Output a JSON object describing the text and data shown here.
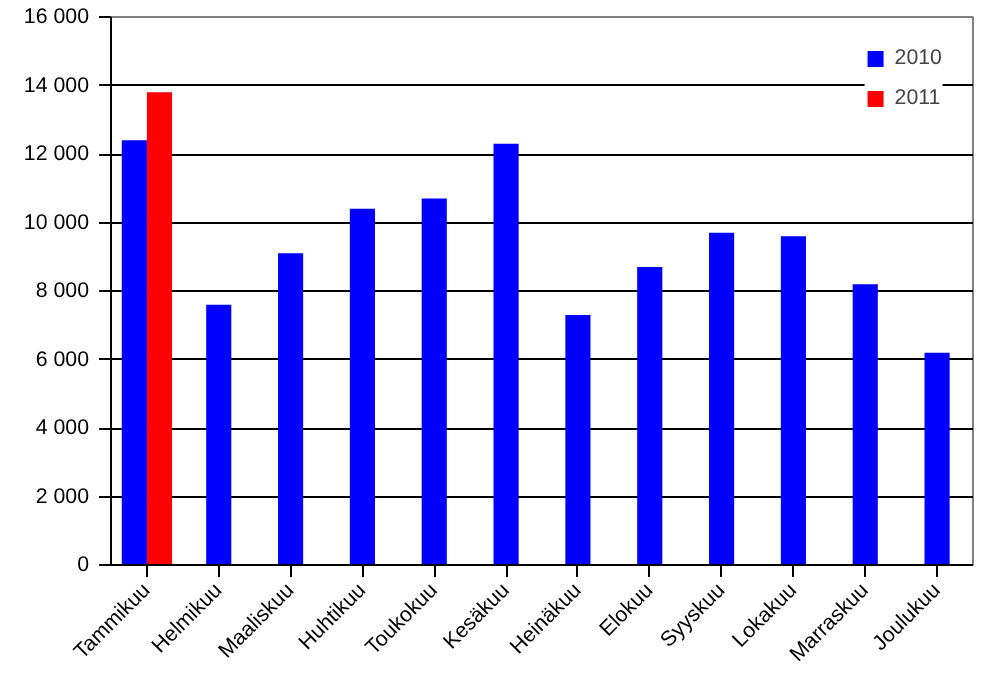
{
  "chart_data": {
    "type": "bar",
    "categories": [
      "Tammikuu",
      "Helmikuu",
      "Maaliskuu",
      "Huhtikuu",
      "Toukokuu",
      "Kesäkuu",
      "Heinäkuu",
      "Elokuu",
      "Syyskuu",
      "Lokakuu",
      "Marraskuu",
      "Joulukuu"
    ],
    "series": [
      {
        "name": "2010",
        "color": "#0000ff",
        "values": [
          12400,
          7600,
          9100,
          10400,
          10700,
          12300,
          7300,
          8700,
          9700,
          9600,
          8200,
          6200
        ]
      },
      {
        "name": "2011",
        "color": "#ff0000",
        "values": [
          13800,
          null,
          null,
          null,
          null,
          null,
          null,
          null,
          null,
          null,
          null,
          null
        ]
      }
    ],
    "ylim": [
      0,
      16000
    ],
    "yticks": [
      {
        "value": 0,
        "label": "0"
      },
      {
        "value": 2000,
        "label": "2 000"
      },
      {
        "value": 4000,
        "label": "4 000"
      },
      {
        "value": 6000,
        "label": "6 000"
      },
      {
        "value": 8000,
        "label": "8 000"
      },
      {
        "value": 10000,
        "label": "10 000"
      },
      {
        "value": 12000,
        "label": "12 000"
      },
      {
        "value": 14000,
        "label": "14 000"
      },
      {
        "value": 16000,
        "label": "16 000"
      }
    ],
    "grid": "y",
    "legend": "top right"
  }
}
